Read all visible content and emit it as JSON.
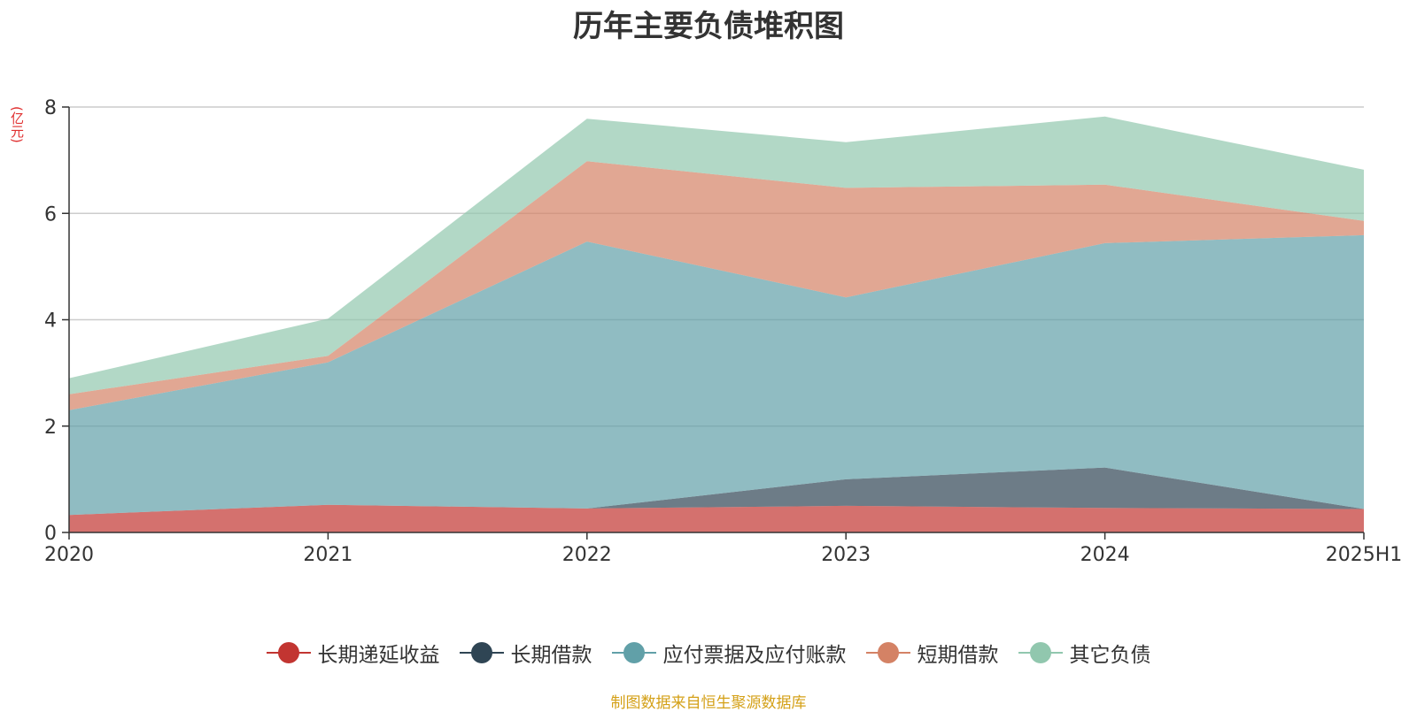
{
  "chart_data": {
    "type": "area",
    "stacked": true,
    "title": "历年主要负债堆积图",
    "unit_label": "(亿元)",
    "categories": [
      "2020",
      "2021",
      "2022",
      "2023",
      "2024",
      "2025H1"
    ],
    "ylim": [
      0,
      8
    ],
    "yticks": [
      0,
      2,
      4,
      6,
      8
    ],
    "grid": true,
    "legend_position": "bottom",
    "series": [
      {
        "name": "长期递延收益",
        "color": "#c23531",
        "values": [
          0.33,
          0.52,
          0.45,
          0.5,
          0.46,
          0.44
        ]
      },
      {
        "name": "长期借款",
        "color": "#2f4554",
        "values": [
          0.0,
          0.0,
          0.0,
          0.5,
          0.76,
          0.0
        ]
      },
      {
        "name": "应付票据及应付账款",
        "color": "#61a0a8",
        "values": [
          1.97,
          2.68,
          5.02,
          3.42,
          4.22,
          5.15
        ]
      },
      {
        "name": "短期借款",
        "color": "#d48265",
        "values": [
          0.3,
          0.12,
          1.51,
          2.06,
          1.1,
          0.27
        ]
      },
      {
        "name": "其它负债",
        "color": "#91c7ae",
        "values": [
          0.3,
          0.7,
          0.8,
          0.86,
          1.28,
          0.96
        ]
      }
    ]
  },
  "source_note": "制图数据来自恒生聚源数据库"
}
